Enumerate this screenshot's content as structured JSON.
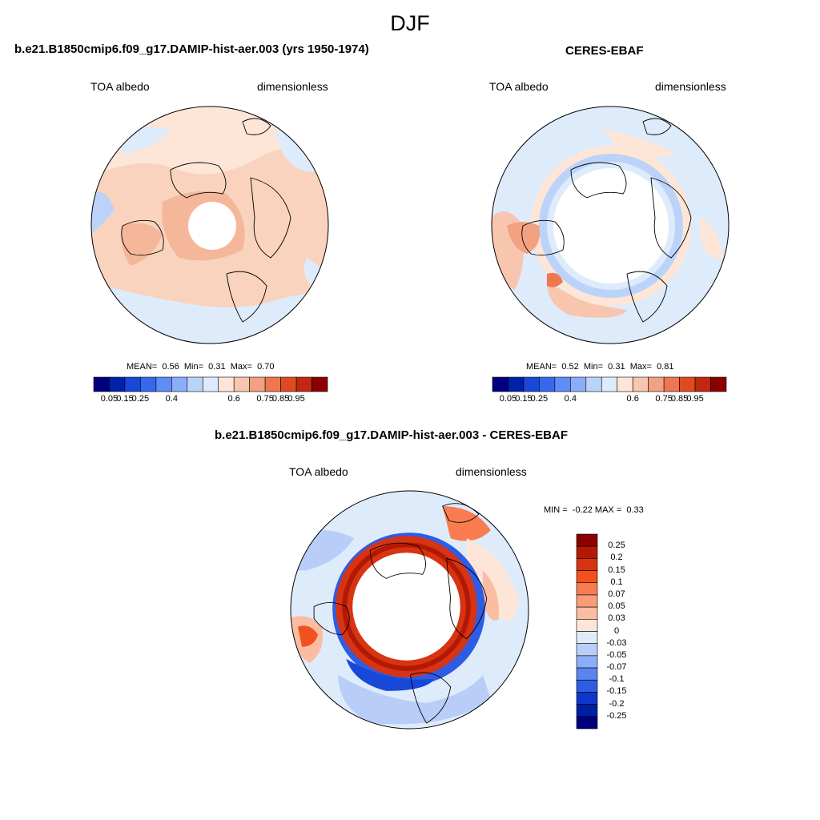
{
  "figure": {
    "season": "DJF"
  },
  "panels": [
    {
      "title": "b.e21.B1850cmip6.f09_g17.DAMIP-hist-aer.003 (yrs 1950-1974)",
      "variable": "TOA albedo",
      "units": "dimensionless",
      "mean_label": "MEAN=",
      "mean": "0.56",
      "min_label": "Min=",
      "min": "0.31",
      "max_label": "Max=",
      "max": "0.70"
    },
    {
      "title": "CERES-EBAF",
      "variable": "TOA albedo",
      "units": "dimensionless",
      "mean_label": "MEAN=",
      "mean": "0.52",
      "min_label": "Min=",
      "min": "0.31",
      "max_label": "Max=",
      "max": "0.81"
    },
    {
      "title": "b.e21.B1850cmip6.f09_g17.DAMIP-hist-aer.003 - CERES-EBAF",
      "variable": "TOA albedo",
      "units": "dimensionless",
      "min_label": "MIN =",
      "min": "-0.22",
      "max_label": "MAX =",
      "max": "0.33"
    }
  ],
  "colorbar_abs": {
    "colors": [
      "#00007f",
      "#0022aa",
      "#1848d8",
      "#3668ee",
      "#5e8df6",
      "#8aaef8",
      "#bcd3f9",
      "#deebfb",
      "#fde6d8",
      "#f8c5ae",
      "#f4a082",
      "#ee7650",
      "#e04a22",
      "#c02810",
      "#8b0000"
    ],
    "ticks": [
      "0.05",
      "0.15",
      "0.25",
      "0.4",
      "0.6",
      "0.75",
      "0.85",
      "0.95"
    ]
  },
  "colorbar_diff": {
    "colors": [
      "#8b0000",
      "#b31805",
      "#d63412",
      "#f2501c",
      "#f87c50",
      "#fa9c78",
      "#fbbca2",
      "#fde6d8",
      "#deebfb",
      "#b8cef8",
      "#8caef6",
      "#5a84ee",
      "#2e5ce4",
      "#0f36c8",
      "#001ea5",
      "#00007f"
    ],
    "ticks": [
      "0.25",
      "0.2",
      "0.15",
      "0.1",
      "0.07",
      "0.05",
      "0.03",
      "0",
      "-0.03",
      "-0.05",
      "-0.07",
      "-0.1",
      "-0.15",
      "-0.2",
      "-0.25"
    ]
  }
}
